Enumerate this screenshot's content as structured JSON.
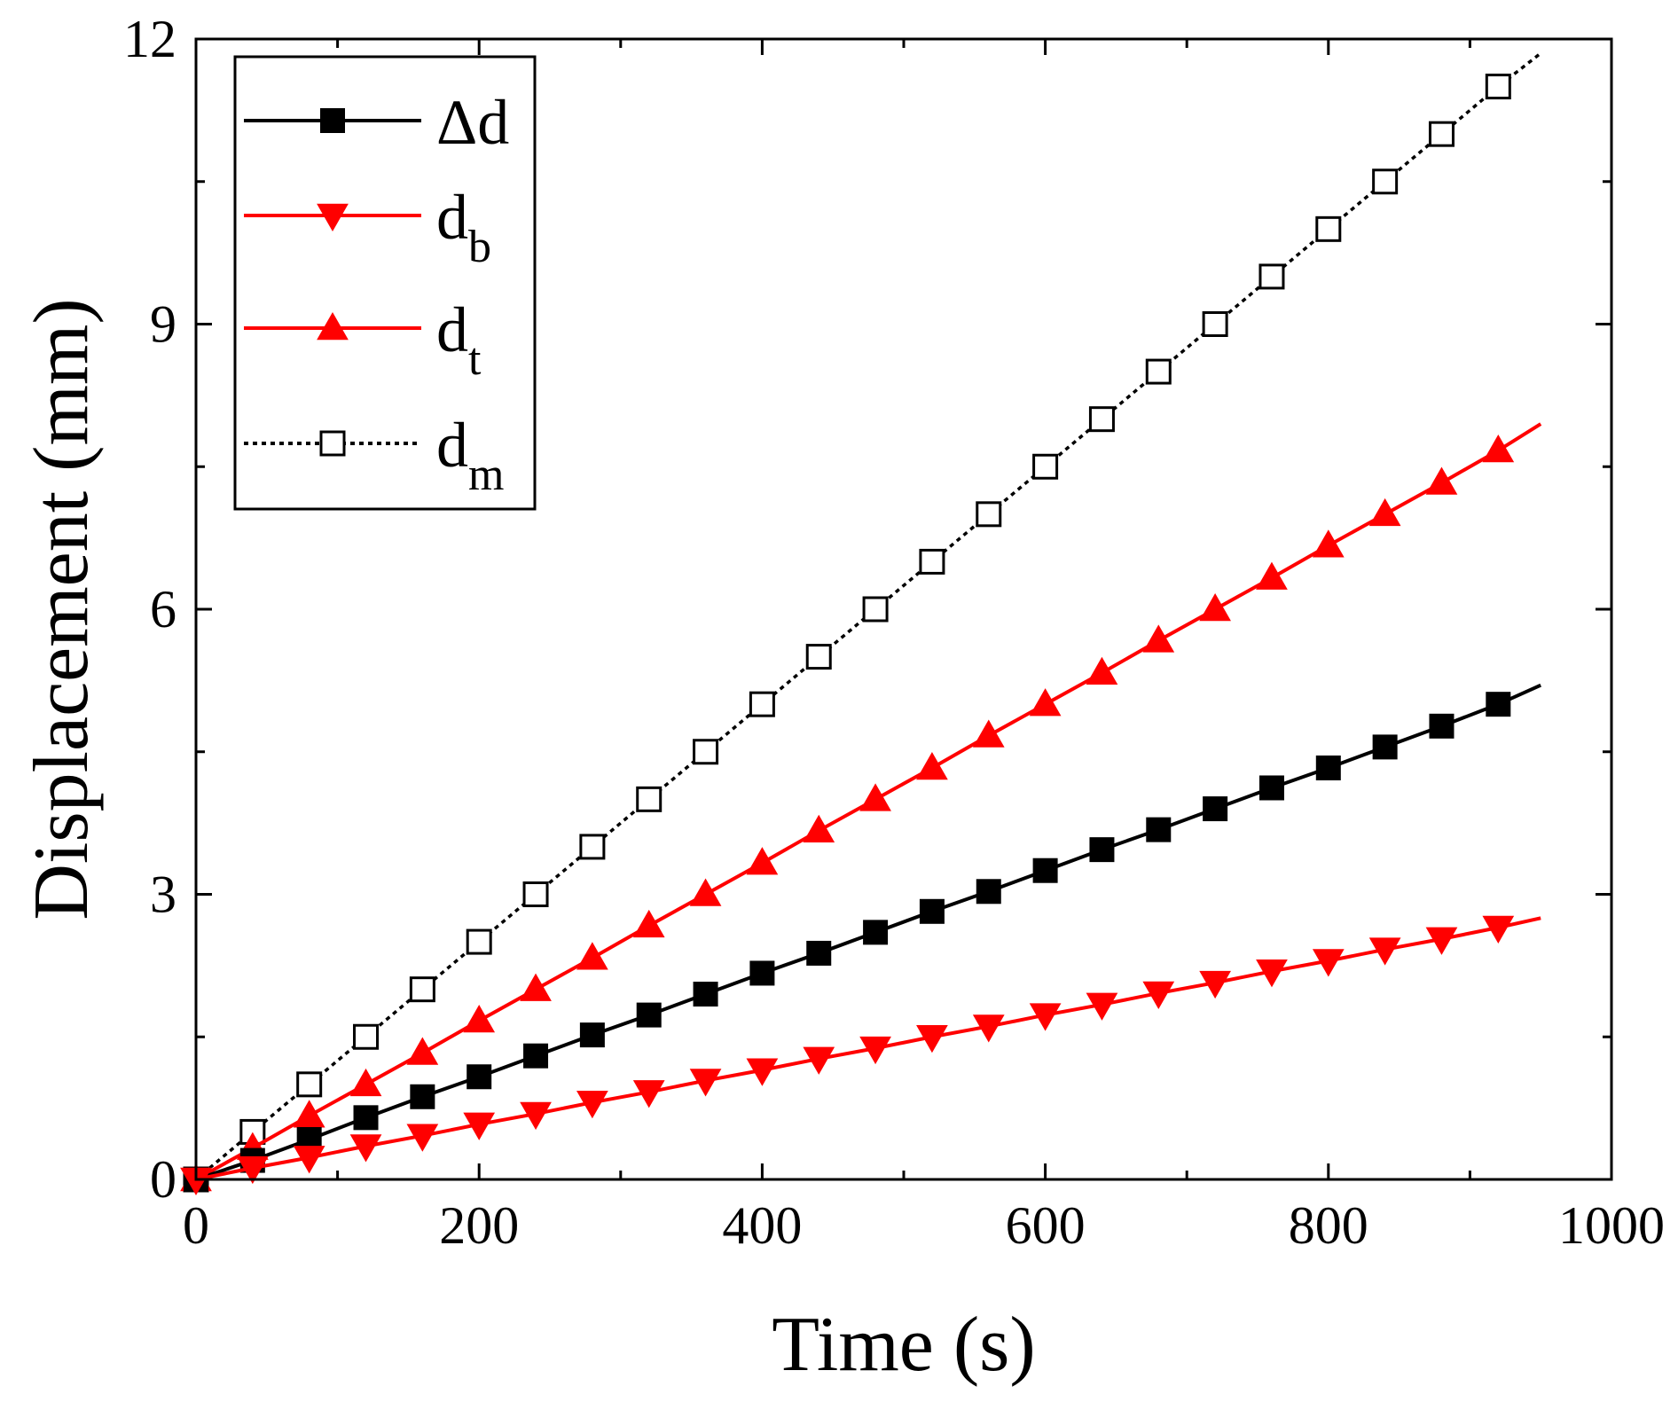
{
  "chart_data": {
    "type": "line",
    "title": "",
    "xlabel": "Time (s)",
    "ylabel": "Displacement (mm)",
    "xlim": [
      0,
      1000
    ],
    "ylim": [
      0,
      12
    ],
    "xticks": [
      0,
      200,
      400,
      600,
      800,
      1000
    ],
    "xtick_labels": [
      "0",
      "200",
      "400",
      "600",
      "800",
      "1000"
    ],
    "yticks": [
      0,
      3,
      6,
      9,
      12
    ],
    "ytick_labels": [
      "0",
      "3",
      "6",
      "9",
      "12"
    ],
    "grid": false,
    "legend_position": "top-left",
    "series": [
      {
        "id": "delta_d",
        "name": "Δd",
        "name_base": "Δd",
        "name_sub": "",
        "color": "#000000",
        "line_style": "solid",
        "marker": "square-filled",
        "line_end": [
          950,
          5.2
        ],
        "x": [
          0,
          40,
          80,
          120,
          160,
          200,
          240,
          280,
          320,
          360,
          400,
          440,
          480,
          520,
          560,
          600,
          640,
          680,
          720,
          760,
          800,
          840,
          880,
          920
        ],
        "y": [
          0,
          0.2,
          0.42,
          0.65,
          0.87,
          1.08,
          1.3,
          1.52,
          1.73,
          1.95,
          2.17,
          2.38,
          2.6,
          2.82,
          3.03,
          3.25,
          3.47,
          3.68,
          3.9,
          4.12,
          4.33,
          4.55,
          4.77,
          5.0
        ]
      },
      {
        "id": "d_b",
        "name": "db",
        "name_base": "d",
        "name_sub": "b",
        "color": "#ff0000",
        "line_style": "solid",
        "marker": "triangle-down-filled",
        "line_end": [
          950,
          2.75
        ],
        "x": [
          0,
          40,
          80,
          120,
          160,
          200,
          240,
          280,
          320,
          360,
          400,
          440,
          480,
          520,
          560,
          600,
          640,
          680,
          720,
          760,
          800,
          840,
          880,
          920
        ],
        "y": [
          0,
          0.12,
          0.23,
          0.35,
          0.46,
          0.58,
          0.69,
          0.81,
          0.92,
          1.04,
          1.15,
          1.27,
          1.38,
          1.5,
          1.61,
          1.73,
          1.84,
          1.96,
          2.07,
          2.19,
          2.3,
          2.42,
          2.53,
          2.65
        ]
      },
      {
        "id": "d_t",
        "name": "dt",
        "name_base": "d",
        "name_sub": "t",
        "color": "#ff0000",
        "line_style": "solid",
        "marker": "triangle-up-filled",
        "line_end": [
          950,
          7.95
        ],
        "x": [
          0,
          40,
          80,
          120,
          160,
          200,
          240,
          280,
          320,
          360,
          400,
          440,
          480,
          520,
          560,
          600,
          640,
          680,
          720,
          760,
          800,
          840,
          880,
          920
        ],
        "y": [
          0,
          0.33,
          0.67,
          1.0,
          1.33,
          1.67,
          2.0,
          2.33,
          2.67,
          3.0,
          3.33,
          3.67,
          4.0,
          4.33,
          4.67,
          5.0,
          5.33,
          5.67,
          6.0,
          6.33,
          6.67,
          7.0,
          7.33,
          7.67
        ]
      },
      {
        "id": "d_m",
        "name": "dm",
        "name_base": "d",
        "name_sub": "m",
        "color": "#000000",
        "line_style": "dotted",
        "marker": "square-open",
        "line_end": [
          950,
          11.85
        ],
        "x": [
          0,
          40,
          80,
          120,
          160,
          200,
          240,
          280,
          320,
          360,
          400,
          440,
          480,
          520,
          560,
          600,
          640,
          680,
          720,
          760,
          800,
          840,
          880,
          920
        ],
        "y": [
          0,
          0.5,
          1.0,
          1.5,
          2.0,
          2.5,
          3.0,
          3.5,
          4.0,
          4.5,
          5.0,
          5.5,
          6.0,
          6.5,
          7.0,
          7.5,
          8.0,
          8.5,
          9.0,
          9.5,
          10.0,
          10.5,
          11.0,
          11.5
        ]
      }
    ]
  }
}
